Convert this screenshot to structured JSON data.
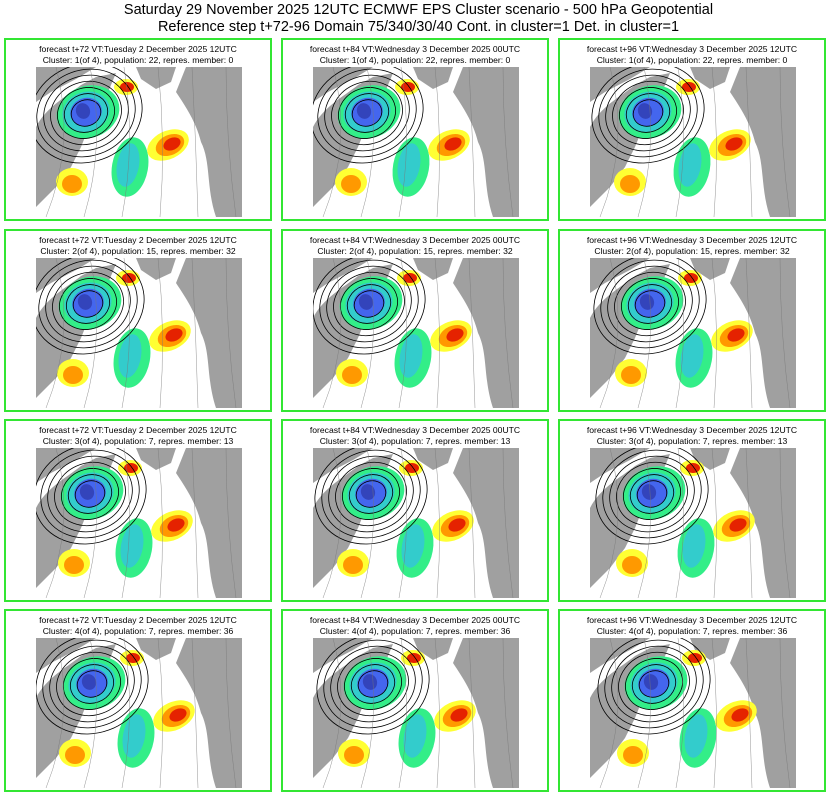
{
  "header": {
    "line1": "Saturday 29 November 2025 12UTC ECMWF EPS Cluster scenario - 500 hPa Geopotential",
    "line2": "Reference step t+72-96 Domain 75/340/30/40 Cont. in cluster=1 Det. in cluster=1"
  },
  "colors": {
    "panel_border": "#33e633",
    "land": "#a0a0a0",
    "positive_light": "#ffff33",
    "positive_mid": "#ff9900",
    "positive_strong": "#e52200",
    "positive_darkest": "#b0002a",
    "negative_light": "#33ee88",
    "negative_mid": "#33cccc",
    "negative_strong": "#4466ee",
    "negative_darkest": "#3344bb",
    "contour": "#000000"
  },
  "panels": [
    [
      {
        "t1": "forecast t+72 VT:Tuesday 2 December 2025 12UTC",
        "t2": "Cluster: 1(of 4), population: 22, repres. member: 0"
      },
      {
        "t1": "forecast t+84 VT:Wednesday 3 December 2025 00UTC",
        "t2": "Cluster: 1(of 4), population: 22, repres. member: 0"
      },
      {
        "t1": "forecast t+96 VT:Wednesday 3 December 2025 12UTC",
        "t2": "Cluster: 1(of 4), population: 22, repres. member: 0"
      }
    ],
    [
      {
        "t1": "forecast t+72 VT:Tuesday 2 December 2025 12UTC",
        "t2": "Cluster: 2(of 4), population: 15, repres. member: 32"
      },
      {
        "t1": "forecast t+84 VT:Wednesday 3 December 2025 00UTC",
        "t2": "Cluster: 2(of 4), population: 15, repres. member: 32"
      },
      {
        "t1": "forecast t+96 VT:Wednesday 3 December 2025 12UTC",
        "t2": "Cluster: 2(of 4), population: 15, repres. member: 32"
      }
    ],
    [
      {
        "t1": "forecast t+72 VT:Tuesday 2 December 2025 12UTC",
        "t2": "Cluster: 3(of 4), population: 7, repres. member: 13"
      },
      {
        "t1": "forecast t+84 VT:Wednesday 3 December 2025 00UTC",
        "t2": "Cluster: 3(of 4), population: 7, repres. member: 13"
      },
      {
        "t1": "forecast t+96 VT:Wednesday 3 December 2025 12UTC",
        "t2": "Cluster: 3(of 4), population: 7, repres. member: 13"
      }
    ],
    [
      {
        "t1": "forecast t+72 VT:Tuesday 2 December 2025 12UTC",
        "t2": "Cluster: 4(of 4), population: 7, repres. member: 36"
      },
      {
        "t1": "forecast t+84 VT:Wednesday 3 December 2025 00UTC",
        "t2": "Cluster: 4(of 4), population: 7, repres. member: 36"
      },
      {
        "t1": "forecast t+96 VT:Wednesday 3 December 2025 12UTC",
        "t2": "Cluster: 4(of 4), population: 7, repres. member: 36"
      }
    ]
  ]
}
